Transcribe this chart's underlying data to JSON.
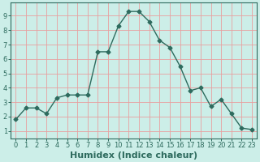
{
  "x": [
    0,
    1,
    2,
    3,
    4,
    5,
    6,
    7,
    8,
    9,
    10,
    11,
    12,
    13,
    14,
    15,
    16,
    17,
    18,
    19,
    20,
    21,
    22,
    23
  ],
  "y": [
    1.8,
    2.6,
    2.6,
    2.2,
    3.3,
    3.5,
    3.5,
    3.5,
    6.5,
    6.5,
    8.3,
    9.3,
    9.3,
    8.6,
    7.3,
    6.8,
    5.5,
    3.8,
    4.0,
    2.7,
    3.2,
    2.2,
    1.2,
    1.1
  ],
  "line_color": "#2e6b5e",
  "marker": "D",
  "markersize": 2.5,
  "linewidth": 1.0,
  "xlabel": "Humidex (Indice chaleur)",
  "xlabel_fontsize": 8,
  "xlabel_fontweight": "bold",
  "ylim": [
    0.5,
    9.9
  ],
  "xlim": [
    -0.5,
    23.5
  ],
  "yticks": [
    1,
    2,
    3,
    4,
    5,
    6,
    7,
    8,
    9
  ],
  "xticks": [
    0,
    1,
    2,
    3,
    4,
    5,
    6,
    7,
    8,
    9,
    10,
    11,
    12,
    13,
    14,
    15,
    16,
    17,
    18,
    19,
    20,
    21,
    22,
    23
  ],
  "bg_color": "#cceee8",
  "grid_color": "#e8a0a0",
  "tick_fontsize": 6,
  "spine_color": "#2e6b5e",
  "xlabel_color": "#2e6b5e"
}
